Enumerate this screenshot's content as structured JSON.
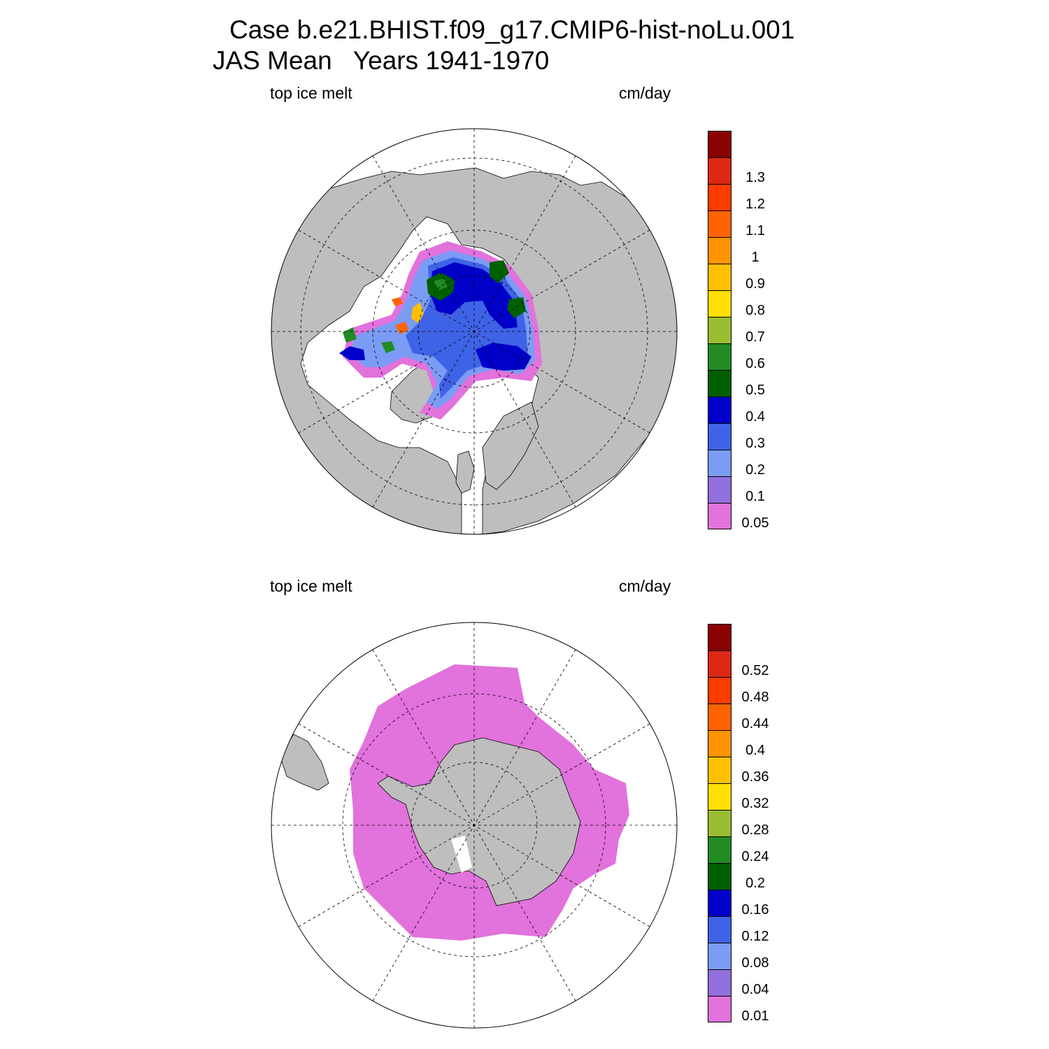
{
  "title": {
    "line1": "Case b.e21.BHIST.f09_g17.CMIP6-hist-noLu.001",
    "line2": "JAS Mean   Years 1941-1970"
  },
  "panels": [
    {
      "id": "north",
      "variable_label": "top ice melt",
      "units_label": "cm/day",
      "hemisphere": "Northern Hemisphere polar stereographic",
      "levels": [
        "0.05",
        "0.1",
        "0.2",
        "0.3",
        "0.4",
        "0.5",
        "0.6",
        "0.7",
        "0.8",
        "0.9",
        "1",
        "1.1",
        "1.2",
        "1.3"
      ]
    },
    {
      "id": "south",
      "variable_label": "top ice melt",
      "units_label": "cm/day",
      "hemisphere": "Southern Hemisphere polar stereographic",
      "levels": [
        "0.01",
        "0.04",
        "0.08",
        "0.12",
        "0.16",
        "0.2",
        "0.24",
        "0.28",
        "0.32",
        "0.36",
        "0.4",
        "0.44",
        "0.48",
        "0.52"
      ]
    }
  ],
  "colors": {
    "palette": [
      "#e272dc",
      "#9270dd",
      "#7b9cf5",
      "#3f63e6",
      "#0000c8",
      "#006000",
      "#228b22",
      "#9abd32",
      "#ffe000",
      "#ffc000",
      "#ff9300",
      "#ff6400",
      "#ff3c00",
      "#dc2814",
      "#8b0000"
    ],
    "land": "#bebebe",
    "ocean": "#ffffff",
    "coastline": "#000000"
  }
}
